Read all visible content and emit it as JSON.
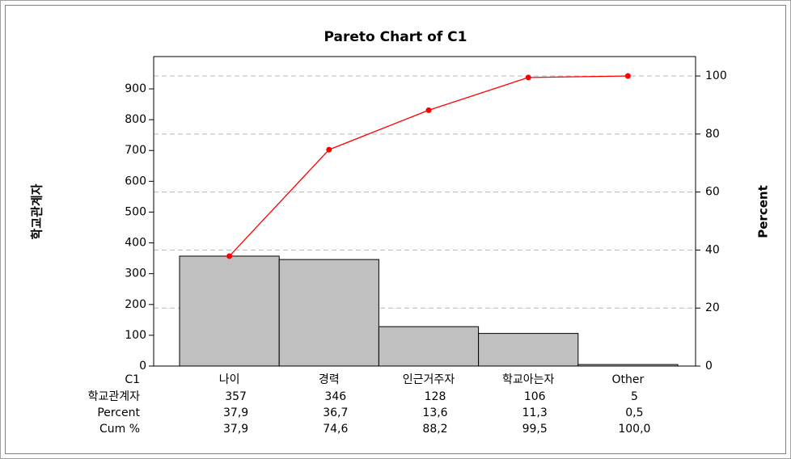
{
  "chart_data": {
    "type": "pareto",
    "title": "Pareto Chart of C1",
    "ylabel": "학교관계자",
    "y2label": "Percent",
    "xlabel": "C1",
    "categories": [
      "나이",
      "경력",
      "인근거주자",
      "학교아는자",
      "Other"
    ],
    "series": [
      {
        "name": "학교관계자",
        "color": "#c0c0c0",
        "values": [
          357,
          346,
          128,
          106,
          5
        ]
      },
      {
        "name": "Percent",
        "values": [
          37.9,
          36.7,
          13.6,
          11.3,
          0.5
        ],
        "value_labels": [
          "37,9",
          "36,7",
          "13,6",
          "11,3",
          "0,5"
        ]
      },
      {
        "name": "Cum %",
        "color": "#ff0000",
        "axis": "y2",
        "values": [
          37.9,
          74.6,
          88.2,
          99.5,
          100.0
        ],
        "value_labels": [
          "37,9",
          "74,6",
          "88,2",
          "99,5",
          "100,0"
        ]
      }
    ],
    "ylim": [
      0,
      1005
    ],
    "yticks": [
      0,
      100,
      200,
      300,
      400,
      500,
      600,
      700,
      800,
      900
    ],
    "y2lim": [
      0,
      106.7
    ],
    "y2ticks": [
      0,
      20,
      40,
      60,
      80,
      100
    ],
    "grid": true
  }
}
